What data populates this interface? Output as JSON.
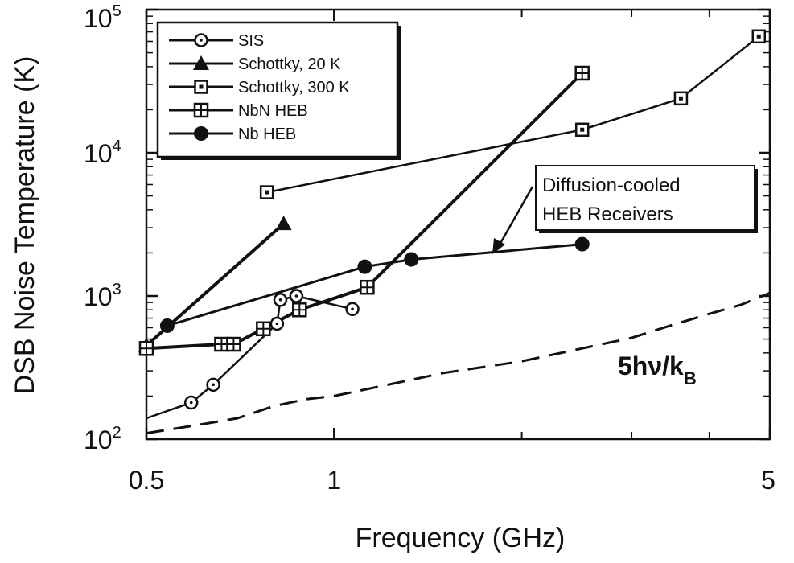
{
  "chart_data": {
    "type": "line",
    "xlabel": "Frequency (GHz)",
    "ylabel": "DSB Noise Temperature (K)",
    "xscale": "log",
    "yscale": "log",
    "xlim": [
      0.5,
      5
    ],
    "ylim": [
      100,
      100000
    ],
    "x_ticks": [
      {
        "value": 0.5,
        "label": "0.5"
      },
      {
        "value": 1,
        "label": "1"
      },
      {
        "value": 5,
        "label": "5"
      }
    ],
    "x_minor_ticks": [
      2,
      3,
      4
    ],
    "y_ticks": [
      {
        "value": 100,
        "base": "10",
        "exp": "2"
      },
      {
        "value": 1000,
        "base": "10",
        "exp": "3"
      },
      {
        "value": 10000,
        "base": "10",
        "exp": "4"
      },
      {
        "value": 100000,
        "base": "10",
        "exp": "5"
      }
    ],
    "legend_position": "top-left",
    "series": [
      {
        "name": "SIS",
        "marker": "open-circle",
        "x": [
          0.5,
          0.59,
          0.64,
          0.81,
          0.82,
          0.87,
          1.07
        ],
        "y": [
          140,
          180,
          240,
          640,
          940,
          1000,
          810
        ]
      },
      {
        "name": "Schottky, 20 K",
        "marker": "filled-triangle",
        "x": [
          0.5,
          0.83
        ],
        "y": [
          450,
          3200
        ]
      },
      {
        "name": "Schottky, 300 K",
        "marker": "open-square",
        "x": [
          0.78,
          2.5,
          3.6,
          4.8
        ],
        "y": [
          5300,
          14500,
          24000,
          65000
        ]
      },
      {
        "name": "NbN HEB",
        "marker": "crossed-square",
        "x": [
          0.5,
          0.66,
          0.69,
          0.77,
          0.88,
          1.13,
          2.5
        ],
        "y": [
          430,
          460,
          460,
          590,
          800,
          1150,
          36000
        ]
      },
      {
        "name": "Nb HEB",
        "marker": "filled-circle",
        "x": [
          0.54,
          1.12,
          1.33,
          2.5
        ],
        "y": [
          620,
          1600,
          1800,
          2300
        ]
      },
      {
        "name": "",
        "marker": "none",
        "style": "dashed",
        "x": [
          0.5,
          0.6,
          0.7,
          0.8,
          0.9,
          1.0,
          1.5,
          2.0,
          2.5,
          3.0,
          3.5,
          4.0,
          4.5,
          5.0
        ],
        "y": [
          110,
          125,
          140,
          170,
          190,
          200,
          290,
          350,
          430,
          510,
          630,
          750,
          870,
          1050
        ]
      }
    ],
    "annotations": {
      "box_lines": [
        "Diffusion-cooled",
        "HEB Receivers"
      ],
      "formula": {
        "main": "5hν/k",
        "subscript": "B"
      }
    }
  }
}
